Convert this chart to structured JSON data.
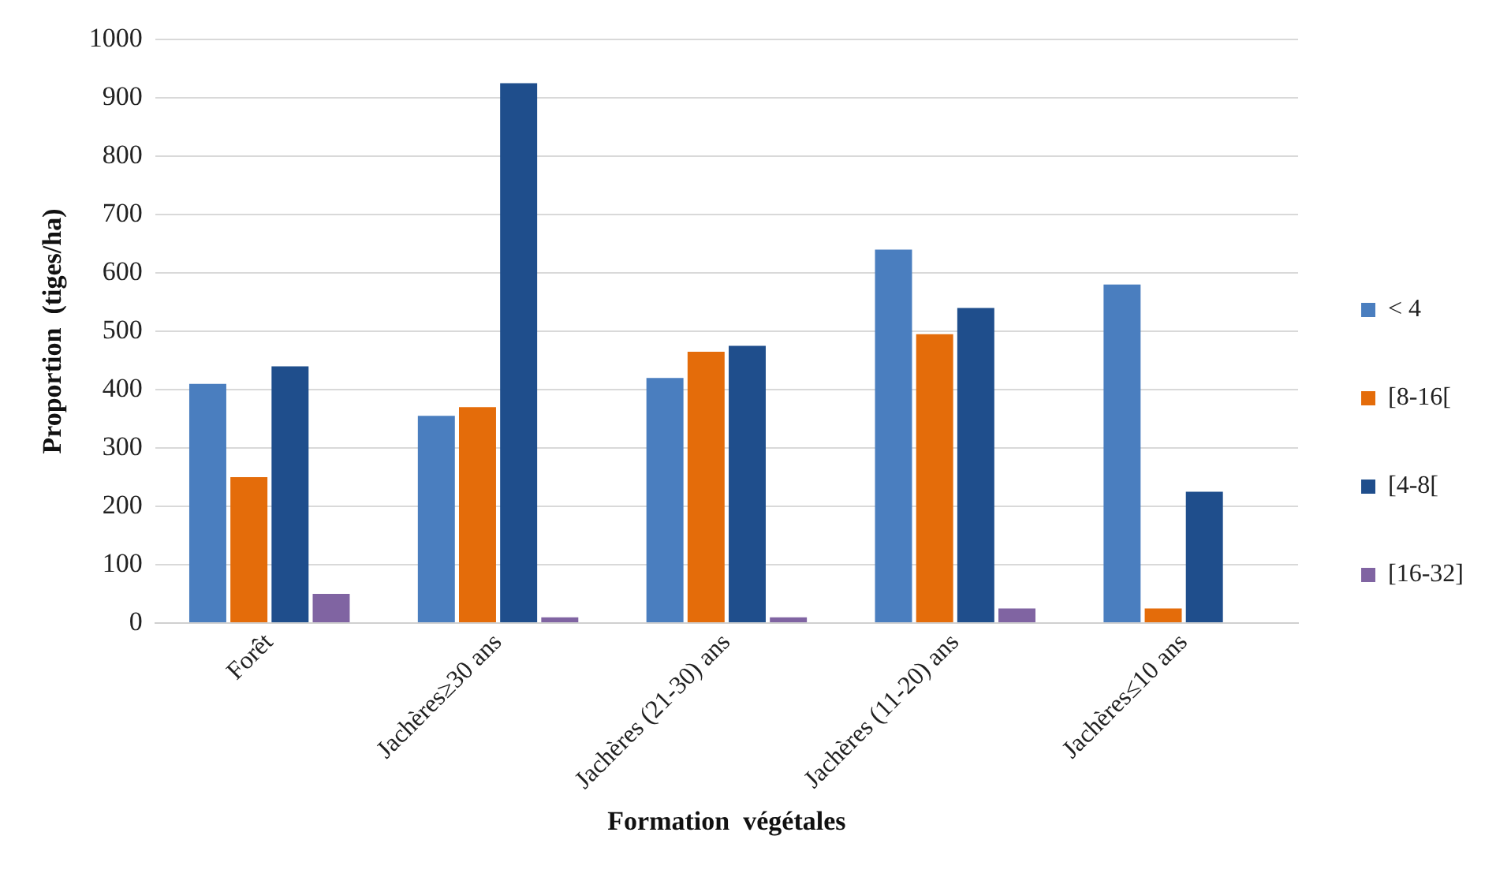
{
  "chart_data": {
    "type": "bar",
    "xlabel": "Formation  végétales",
    "ylabel": "Proportion  (tiges/ha)",
    "categories": [
      "Forêt",
      "Jachères≥30 ans",
      "Jachères (21-30) ans",
      "Jachères (11-20) ans",
      "Jachères≤10 ans"
    ],
    "series": [
      {
        "name": "< 4",
        "color": "#4a7ebf",
        "values": [
          410,
          355,
          420,
          640,
          580
        ]
      },
      {
        "name": "[8-16[",
        "color": "#e46c0a",
        "values": [
          250,
          370,
          465,
          495,
          25
        ]
      },
      {
        "name": "[4-8[",
        "color": "#1f4e8c",
        "values": [
          440,
          925,
          475,
          540,
          225
        ]
      },
      {
        "name": "[16-32]",
        "color": "#8064a2",
        "values": [
          50,
          10,
          10,
          25,
          0
        ]
      }
    ],
    "ylim": [
      0,
      1000
    ],
    "yticks": [
      0,
      100,
      200,
      300,
      400,
      500,
      600,
      700,
      800,
      900,
      1000
    ],
    "grid": "y",
    "legend": "right"
  }
}
